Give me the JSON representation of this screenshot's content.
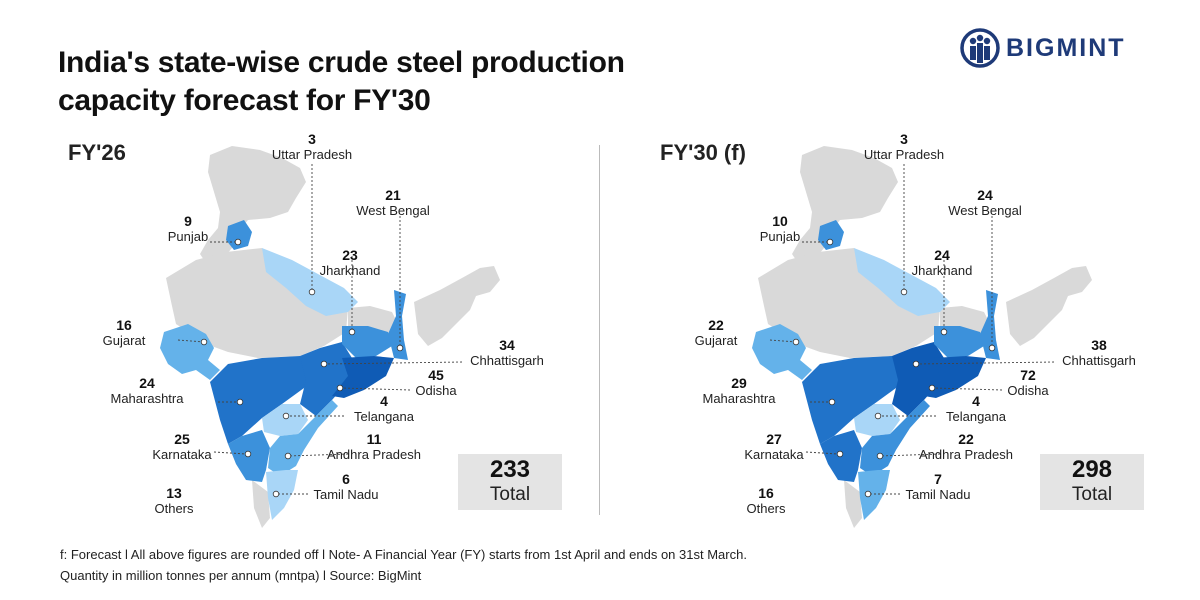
{
  "title_line1": "India's state-wise crude steel production",
  "title_line2": "capacity forecast for FY'30",
  "brand": "BIGMINT",
  "colors": {
    "base": "#d9d9d9",
    "light": "#a9d6f7",
    "mid_light": "#64b2ea",
    "mid": "#3c91db",
    "dark": "#2173c9",
    "darkest": "#0f5bb5",
    "brand": "#1e3a78"
  },
  "panels": [
    {
      "title": "FY'26",
      "total_value": "233",
      "total_label": "Total",
      "states": [
        {
          "name": "Uttar Pradesh",
          "value": "3"
        },
        {
          "name": "West Bengal",
          "value": "21"
        },
        {
          "name": "Punjab",
          "value": "9"
        },
        {
          "name": "Jharkhand",
          "value": "23"
        },
        {
          "name": "Gujarat",
          "value": "16"
        },
        {
          "name": "Chhattisgarh",
          "value": "34"
        },
        {
          "name": "Maharashtra",
          "value": "24"
        },
        {
          "name": "Odisha",
          "value": "45"
        },
        {
          "name": "Telangana",
          "value": "4"
        },
        {
          "name": "Karnataka",
          "value": "25"
        },
        {
          "name": "Andhra Pradesh",
          "value": "11"
        },
        {
          "name": "Tamil Nadu",
          "value": "6"
        },
        {
          "name": "Others",
          "value": "13"
        }
      ]
    },
    {
      "title": "FY'30 (f)",
      "total_value": "298",
      "total_label": "Total",
      "states": [
        {
          "name": "Uttar Pradesh",
          "value": "3"
        },
        {
          "name": "West Bengal",
          "value": "24"
        },
        {
          "name": "Punjab",
          "value": "10"
        },
        {
          "name": "Jharkhand",
          "value": "24"
        },
        {
          "name": "Gujarat",
          "value": "22"
        },
        {
          "name": "Chhattisgarh",
          "value": "38"
        },
        {
          "name": "Maharashtra",
          "value": "29"
        },
        {
          "name": "Odisha",
          "value": "72"
        },
        {
          "name": "Telangana",
          "value": "4"
        },
        {
          "name": "Karnataka",
          "value": "27"
        },
        {
          "name": "Andhra Pradesh",
          "value": "22"
        },
        {
          "name": "Tamil Nadu",
          "value": "7"
        },
        {
          "name": "Others",
          "value": "16"
        }
      ]
    }
  ],
  "footer_line1": "f: Forecast  l  All above figures are rounded off  l  Note- A Financial Year (FY) starts from 1st April and ends on 31st March.",
  "footer_line2": "Quantity in million tonnes per annum (mntpa)  l  Source: BigMint"
}
